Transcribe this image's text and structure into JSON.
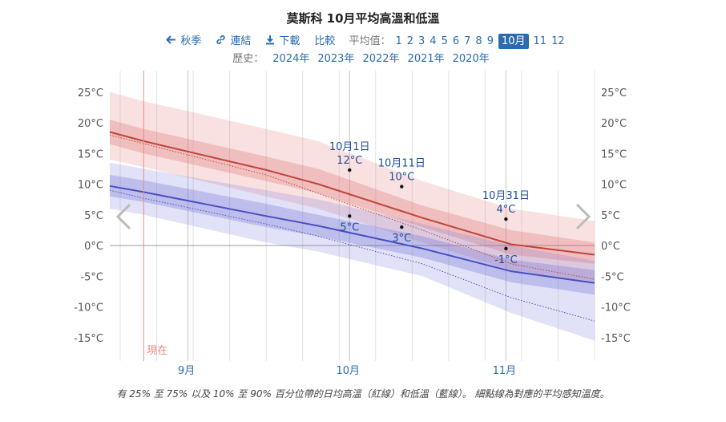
{
  "title": "莫斯科 10月平均高溫和低溫",
  "nav": {
    "season": "秋季",
    "link": "連結",
    "download": "下載",
    "compare": "比較",
    "avg_label": "平均值：",
    "months": [
      "1",
      "2",
      "3",
      "4",
      "5",
      "6",
      "7",
      "8",
      "9",
      "10月",
      "11",
      "12"
    ],
    "selected_month": "10月"
  },
  "history": {
    "label": "歷史：",
    "years": [
      "2024年",
      "2023年",
      "2022年",
      "2021年",
      "2020年"
    ]
  },
  "now_label": "現在",
  "caption": "有 25% 至 75% 以及 10% 至 90% 百分位帶的日均高溫（紅線）和低溫（藍線）。 細點線為對應的平均感知溫度。",
  "colors": {
    "high": "#c0443b",
    "low": "#4a4fc0",
    "accent": "#2b6cb0",
    "now": "#f08a80"
  },
  "chart_data": {
    "type": "line",
    "x_range": [
      "8月17日",
      "11月18日"
    ],
    "ylim": [
      -20,
      28
    ],
    "y_ticks": [
      "25°C",
      "20°C",
      "15°C",
      "10°C",
      "5°C",
      "0°C",
      "-5°C",
      "-10°C",
      "-15°C"
    ],
    "y_tick_values": [
      25,
      20,
      15,
      10,
      5,
      0,
      -5,
      -10,
      -15
    ],
    "month_labels": [
      "9月",
      "10月",
      "11月"
    ],
    "month_label_days": [
      15,
      46,
      76
    ],
    "x_day": [
      0,
      6.5,
      30,
      40,
      60,
      77,
      93
    ],
    "series": [
      {
        "name": "高溫",
        "values": [
          18.5,
          17,
          12.3,
          10,
          4.5,
          0.2,
          -1.5
        ],
        "band_25_75": [
          [
            16.5,
            20.5
          ],
          [
            15,
            19
          ],
          [
            10.5,
            14.5
          ],
          [
            8.5,
            12.5
          ],
          [
            3,
            6.5
          ],
          [
            -1.5,
            2.5
          ],
          [
            -3,
            0.5
          ]
        ],
        "band_10_90": [
          [
            14,
            25
          ],
          [
            12.8,
            23.5
          ],
          [
            8,
            19
          ],
          [
            6,
            17
          ],
          [
            0.5,
            10.5
          ],
          [
            -4,
            6
          ],
          [
            -6,
            4
          ]
        ],
        "feels": [
          18,
          16.6,
          11.5,
          8.5,
          2.5,
          -3,
          -5.5
        ]
      },
      {
        "name": "低溫",
        "values": [
          9.7,
          8.7,
          4.8,
          3.2,
          -0.5,
          -4.2,
          -6.1
        ],
        "band_25_75": [
          [
            8,
            11.5
          ],
          [
            7.1,
            10.6
          ],
          [
            3,
            6.8
          ],
          [
            1.5,
            5
          ],
          [
            -2,
            1.5
          ],
          [
            -6,
            -2.3
          ],
          [
            -8,
            -4
          ]
        ],
        "band_10_90": [
          [
            6,
            13.5
          ],
          [
            5,
            12.5
          ],
          [
            0.5,
            9
          ],
          [
            -1,
            7.5
          ],
          [
            -5,
            3.5
          ],
          [
            -11,
            0
          ],
          [
            -15.5,
            -2.5
          ]
        ],
        "feels": [
          9,
          7.7,
          3.5,
          1.5,
          -3,
          -8.5,
          -12.3
        ]
      }
    ],
    "annotations": [
      {
        "date": "10月1日",
        "value": "12°C",
        "day": 46,
        "y": 12.3,
        "series": "high"
      },
      {
        "date": "10月11日",
        "value": "10°C",
        "day": 56,
        "y": 9.6,
        "series": "high"
      },
      {
        "date": "10月31日",
        "value": "4°C",
        "day": 76,
        "y": 4.3,
        "series": "high"
      },
      {
        "value": "5°C",
        "day": 46,
        "y": 4.8,
        "series": "low"
      },
      {
        "value": "3°C",
        "day": 56,
        "y": 3.0,
        "series": "low"
      },
      {
        "value": "-1°C",
        "day": 76,
        "y": -0.5,
        "series": "low"
      }
    ],
    "now_day": 6.5,
    "grid": true
  }
}
